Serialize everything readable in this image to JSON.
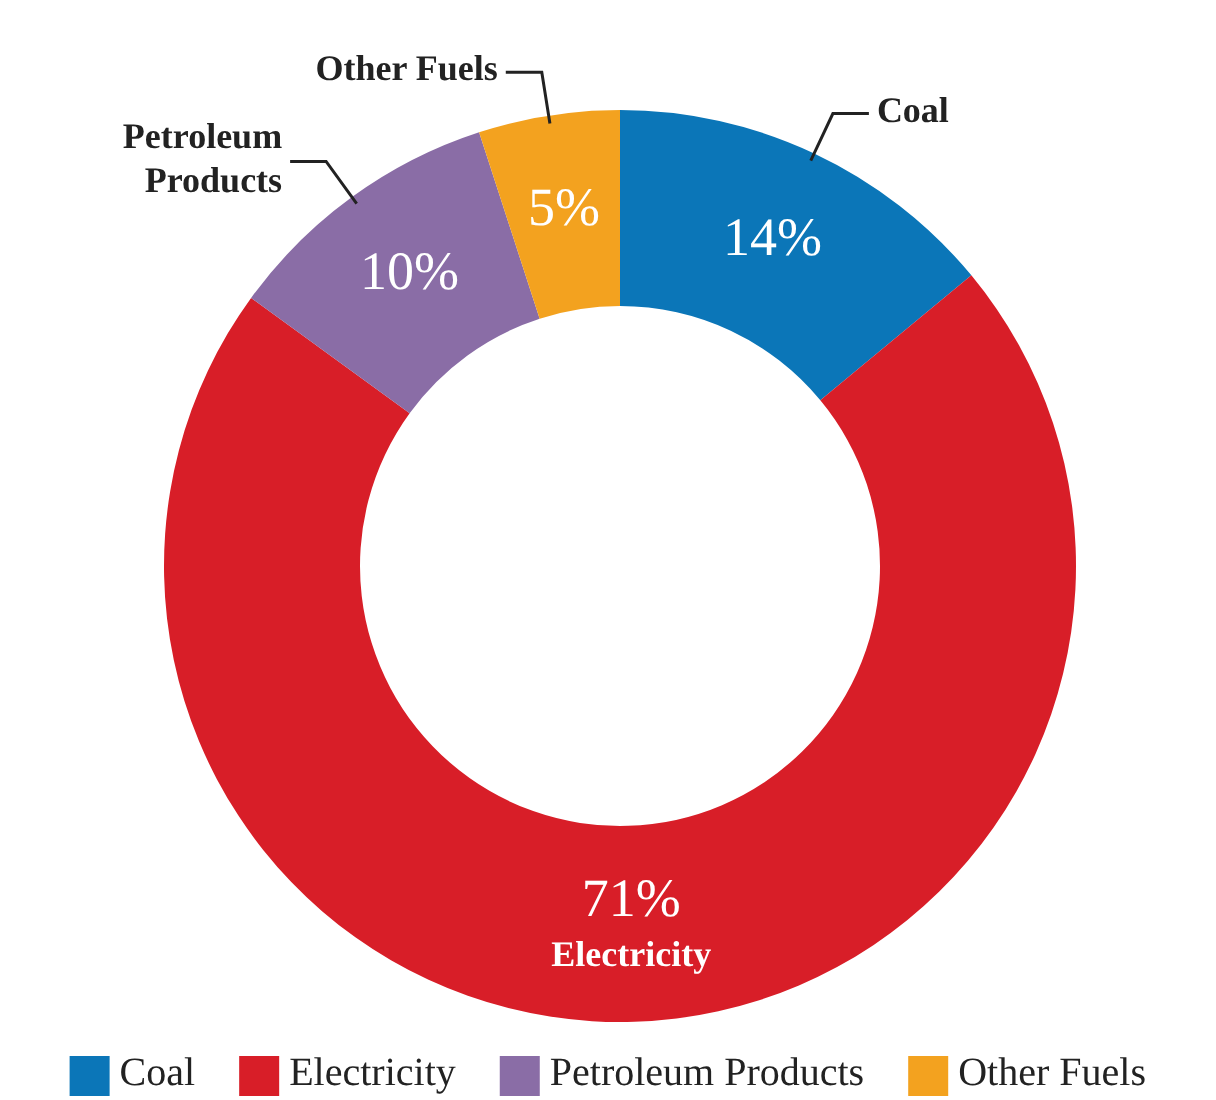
{
  "chart_data": {
    "type": "donut",
    "categories": [
      "Coal",
      "Electricity",
      "Petroleum Products",
      "Other Fuels"
    ],
    "values": [
      14,
      71,
      10,
      5
    ],
    "value_labels": [
      "14%",
      "71%",
      "10%",
      "5%"
    ],
    "colors": [
      "#0b76b8",
      "#d81e28",
      "#8a6da6",
      "#f3a21f"
    ],
    "legend": "bottom"
  }
}
